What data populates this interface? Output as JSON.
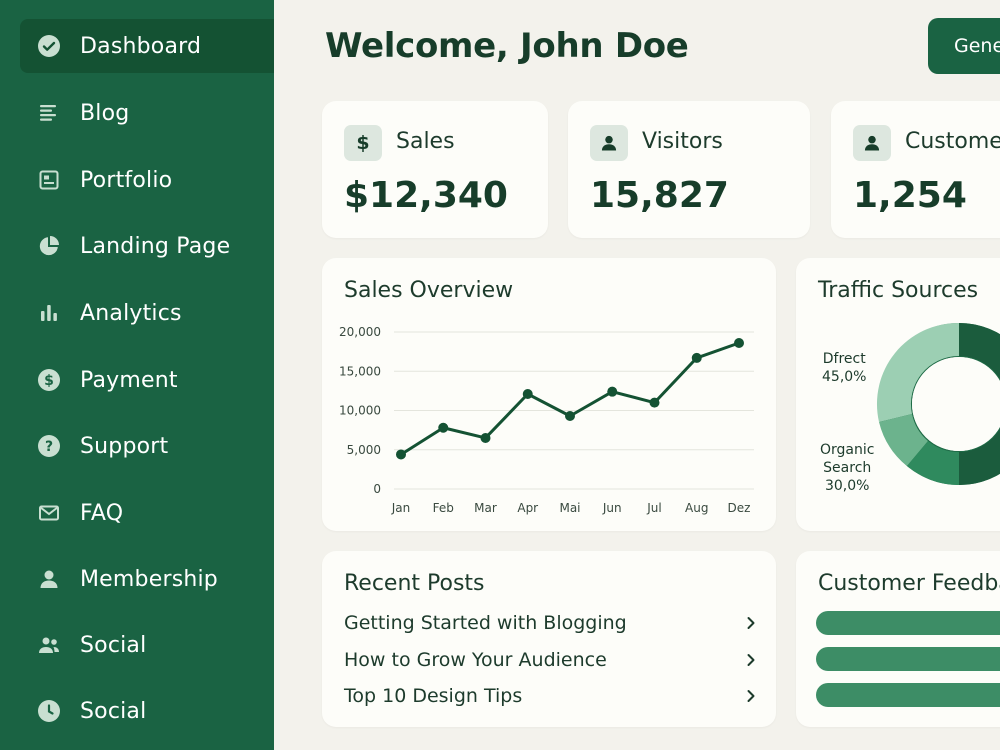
{
  "sidebar": {
    "items": [
      {
        "label": "Dashboard",
        "icon": "check-circle-icon",
        "active": true
      },
      {
        "label": "Blog",
        "icon": "list-icon"
      },
      {
        "label": "Portfolio",
        "icon": "portfolio-icon"
      },
      {
        "label": "Landing Page",
        "icon": "pie-icon"
      },
      {
        "label": "Analytics",
        "icon": "bar-chart-icon"
      },
      {
        "label": "Payment",
        "icon": "dollar-circle-icon"
      },
      {
        "label": "Support",
        "icon": "help-circle-icon"
      },
      {
        "label": "FAQ",
        "icon": "mail-icon"
      },
      {
        "label": "Membership",
        "icon": "user-icon"
      },
      {
        "label": "Social",
        "icon": "users-icon"
      },
      {
        "label": "Social",
        "icon": "clock-icon"
      }
    ]
  },
  "header": {
    "title": "Welcome, John Doe",
    "button_label": "Gene"
  },
  "stats": [
    {
      "label": "Sales",
      "value": "$12,340",
      "icon": "dollar-icon",
      "icon_text": "$"
    },
    {
      "label": "Visitors",
      "value": "15,827",
      "icon": "user-icon"
    },
    {
      "label": "Custome",
      "value": "1,254",
      "icon": "user-icon"
    }
  ],
  "sales_overview": {
    "title": "Sales Overview"
  },
  "chart_data": [
    {
      "type": "line",
      "title": "Sales Overview",
      "categories": [
        "Jan",
        "Feb",
        "Mar",
        "Apr",
        "Mai",
        "Jun",
        "Jul",
        "Aug",
        "Dez"
      ],
      "values": [
        4400,
        7800,
        6500,
        12100,
        9300,
        12400,
        11000,
        16700,
        18600
      ],
      "yticks": [
        "20,000",
        "15,000",
        "10,000",
        "5,000",
        "0"
      ],
      "ylim": [
        0,
        20000
      ],
      "grid": true,
      "color": "#145233"
    },
    {
      "type": "pie",
      "title": "Traffic Sources",
      "labels": [
        {
          "name": "Dfrect",
          "value": "45,0%"
        },
        {
          "name": "Organic Search",
          "value": "30,0%"
        }
      ]
    }
  ],
  "traffic": {
    "title": "Traffic Sources",
    "direct_name": "Dfrect",
    "direct_value": "45,0%",
    "organic_name_1": "Organic",
    "organic_name_2": "Search",
    "organic_value": "30,0%"
  },
  "recent_posts": {
    "title": "Recent Posts",
    "items": [
      "Getting Started with Blogging",
      "How to Grow Your Audience",
      "Top 10 Design Tips"
    ]
  },
  "feedback": {
    "title": "Customer Feedba"
  },
  "colors": {
    "sidebar": "#1a6343",
    "sidebar_active": "#145233",
    "accent": "#1a6343",
    "background": "#f3f2ec",
    "card": "#fdfdf9"
  }
}
